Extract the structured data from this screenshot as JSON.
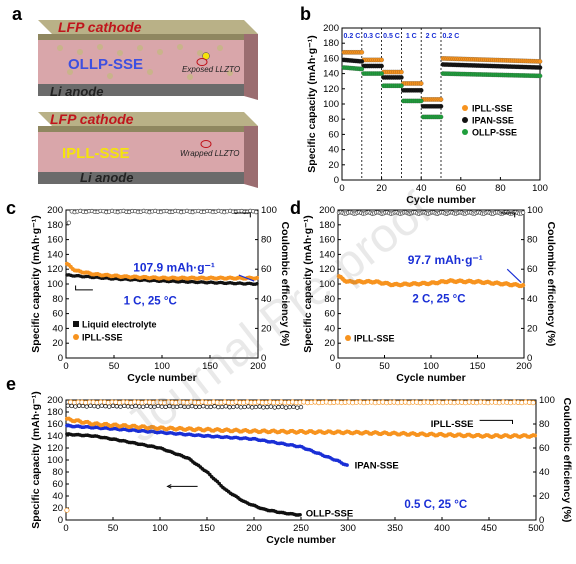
{
  "panel_labels": {
    "a": "a",
    "b": "b",
    "c": "c",
    "d": "d",
    "e": "e"
  },
  "watermark": "Journal Pre-proof",
  "cartoon": {
    "top": {
      "cathode": "LFP cathode",
      "electrolyte": "OLLP-SSE",
      "anode": "Li anode",
      "note": "Exposed LLZTO"
    },
    "bottom": {
      "cathode": "LFP cathode",
      "electrolyte": "IPLL-SSE",
      "anode": "Li anode",
      "note": "Wrapped LLZTO"
    },
    "colors": {
      "cathode": "#9d9468",
      "electrolyte": "#d39a9f",
      "anode": "#6b6b6b",
      "red_text": "#c0141c",
      "blue_text": "#3e4fe0",
      "yellow_text": "#f5e40b"
    }
  },
  "chart_data": [
    {
      "id": "b",
      "type": "scatter",
      "xlabel": "Cycle number",
      "ylabel": "Specific capacity (mAh·g⁻¹)",
      "xlim": [
        0,
        100
      ],
      "ylim": [
        0,
        200
      ],
      "xticks": [
        0,
        20,
        40,
        60,
        80,
        100
      ],
      "yticks": [
        0,
        20,
        40,
        60,
        80,
        100,
        120,
        140,
        160,
        180,
        200
      ],
      "rate_labels": [
        {
          "x": 5,
          "text": "0.2 C"
        },
        {
          "x": 15,
          "text": "0.3 C"
        },
        {
          "x": 25,
          "text": "0.5 C"
        },
        {
          "x": 35,
          "text": "1 C"
        },
        {
          "x": 45,
          "text": "2 C"
        },
        {
          "x": 55,
          "text": "0.2 C"
        }
      ],
      "dividers": [
        10,
        20,
        30,
        40,
        50
      ],
      "legend_position": "right",
      "series": [
        {
          "name": "IPLL-SSE",
          "color": "#f7931e",
          "segments": [
            [
              1,
              10,
              168,
              168
            ],
            [
              11,
              20,
              158,
              158
            ],
            [
              21,
              30,
              142,
              142
            ],
            [
              31,
              40,
              127,
              127
            ],
            [
              41,
              50,
              106,
              106
            ],
            [
              51,
              100,
              160,
              156
            ]
          ]
        },
        {
          "name": "IPAN-SSE",
          "color": "#111111",
          "segments": [
            [
              1,
              10,
              158,
              156
            ],
            [
              11,
              20,
              150,
              150
            ],
            [
              21,
              30,
              135,
              135
            ],
            [
              31,
              40,
              118,
              118
            ],
            [
              41,
              50,
              97,
              97
            ],
            [
              51,
              100,
              152,
              148
            ]
          ]
        },
        {
          "name": "OLLP-SSE",
          "color": "#1f9e3c",
          "segments": [
            [
              1,
              10,
              148,
              146
            ],
            [
              11,
              20,
              140,
              140
            ],
            [
              21,
              30,
              124,
              124
            ],
            [
              31,
              40,
              104,
              104
            ],
            [
              41,
              50,
              83,
              83
            ],
            [
              51,
              100,
              140,
              137
            ]
          ]
        }
      ]
    },
    {
      "id": "c",
      "type": "scatter",
      "xlabel": "Cycle number",
      "ylabel": "Specific capacity (mAh·g⁻¹)",
      "y2label": "Coulombic efficiency (%)",
      "xlim": [
        0,
        200
      ],
      "ylim": [
        0,
        200
      ],
      "y2lim": [
        0,
        100
      ],
      "xticks": [
        0,
        50,
        100,
        150,
        200
      ],
      "yticks": [
        0,
        20,
        40,
        60,
        80,
        100,
        120,
        140,
        160,
        180,
        200
      ],
      "y2ticks": [
        0,
        20,
        40,
        60,
        80,
        100
      ],
      "annotation": "107.9 mAh·g⁻¹",
      "condition": "1 C, 25 °C",
      "legend_position": "bottom-left",
      "series": [
        {
          "name": "Liquid electrolyte",
          "color": "#111111",
          "axis": "left",
          "points": [
            [
              1,
              112
            ],
            [
              20,
              110
            ],
            [
              50,
              107
            ],
            [
              100,
              104
            ],
            [
              150,
              102
            ],
            [
              200,
              100
            ]
          ]
        },
        {
          "name": "IPLL-SSE",
          "color": "#f7931e",
          "axis": "left",
          "points": [
            [
              1,
              127
            ],
            [
              10,
              118
            ],
            [
              30,
              113
            ],
            [
              60,
              110
            ],
            [
              100,
              108
            ],
            [
              150,
              108
            ],
            [
              200,
              107.9
            ]
          ]
        },
        {
          "name": "Coulombic efficiency",
          "color": "#444444",
          "axis": "right",
          "open": true,
          "points": [
            [
              1,
              83
            ],
            [
              5,
              99
            ],
            [
              200,
              99
            ]
          ]
        }
      ]
    },
    {
      "id": "d",
      "type": "scatter",
      "xlabel": "Cycle number",
      "ylabel": "Specific capacity (mAh·g⁻¹)",
      "y2label": "Coulombic efficiency (%)",
      "xlim": [
        0,
        200
      ],
      "ylim": [
        0,
        200
      ],
      "y2lim": [
        0,
        100
      ],
      "xticks": [
        0,
        50,
        100,
        150,
        200
      ],
      "yticks": [
        0,
        20,
        40,
        60,
        80,
        100,
        120,
        140,
        160,
        180,
        200
      ],
      "y2ticks": [
        0,
        20,
        40,
        60,
        80,
        100
      ],
      "annotation": "97.7 mAh·g⁻¹",
      "condition": "2 C, 25 °C",
      "legend_position": "bottom-left",
      "series": [
        {
          "name": "IPLL-SSE",
          "color": "#f7931e",
          "axis": "left",
          "points": [
            [
              1,
              110
            ],
            [
              10,
              103
            ],
            [
              40,
              103
            ],
            [
              60,
              99
            ],
            [
              100,
              101
            ],
            [
              120,
              104
            ],
            [
              150,
              103
            ],
            [
              180,
              100
            ],
            [
              200,
              97.7
            ]
          ]
        },
        {
          "name": "Coulombic efficiency",
          "color": "#444444",
          "axis": "right",
          "open": true,
          "points": [
            [
              1,
              98
            ],
            [
              200,
              98
            ]
          ]
        }
      ]
    },
    {
      "id": "e",
      "type": "scatter",
      "xlabel": "Cycle number",
      "ylabel": "Specific capacity (mAh·g⁻¹)",
      "y2label": "Coulombic efficiency (%)",
      "xlim": [
        0,
        500
      ],
      "ylim": [
        0,
        200
      ],
      "y2lim": [
        0,
        100
      ],
      "xticks": [
        0,
        50,
        100,
        150,
        200,
        250,
        300,
        350,
        400,
        450,
        500
      ],
      "yticks": [
        0,
        20,
        40,
        60,
        80,
        100,
        120,
        140,
        160,
        180,
        200
      ],
      "y2ticks": [
        0,
        20,
        40,
        60,
        80,
        100
      ],
      "condition": "0.5 C, 25 °C",
      "series": [
        {
          "name": "IPLL-SSE",
          "color": "#f7931e",
          "axis": "left",
          "points": [
            [
              1,
              168
            ],
            [
              30,
              160
            ],
            [
              100,
              153
            ],
            [
              200,
              148
            ],
            [
              300,
              146
            ],
            [
              400,
              142
            ],
            [
              450,
              140
            ],
            [
              500,
              140
            ]
          ]
        },
        {
          "name": "IPAN-SSE",
          "color": "#1a2fd6",
          "axis": "left",
          "points": [
            [
              1,
              157
            ],
            [
              50,
              152
            ],
            [
              100,
              146
            ],
            [
              150,
              140
            ],
            [
              200,
              135
            ],
            [
              250,
              122
            ],
            [
              270,
              110
            ],
            [
              290,
              98
            ],
            [
              300,
              90
            ]
          ]
        },
        {
          "name": "OLLP-SSE",
          "color": "#111111",
          "axis": "left",
          "points": [
            [
              1,
              143
            ],
            [
              30,
              140
            ],
            [
              60,
              132
            ],
            [
              100,
              120
            ],
            [
              130,
              103
            ],
            [
              150,
              80
            ],
            [
              170,
              50
            ],
            [
              190,
              30
            ],
            [
              210,
              18
            ],
            [
              230,
              12
            ],
            [
              250,
              8
            ]
          ]
        },
        {
          "name": "IPLL-SSE CE",
          "color": "#f7931e",
          "axis": "right",
          "open": true,
          "points": [
            [
              1,
              8
            ],
            [
              3,
              98
            ],
            [
              500,
              98
            ]
          ]
        },
        {
          "name": "OLLP-SSE CE",
          "color": "#111111",
          "axis": "right",
          "open": true,
          "points": [
            [
              1,
              95
            ],
            [
              250,
              94
            ]
          ]
        }
      ]
    }
  ]
}
